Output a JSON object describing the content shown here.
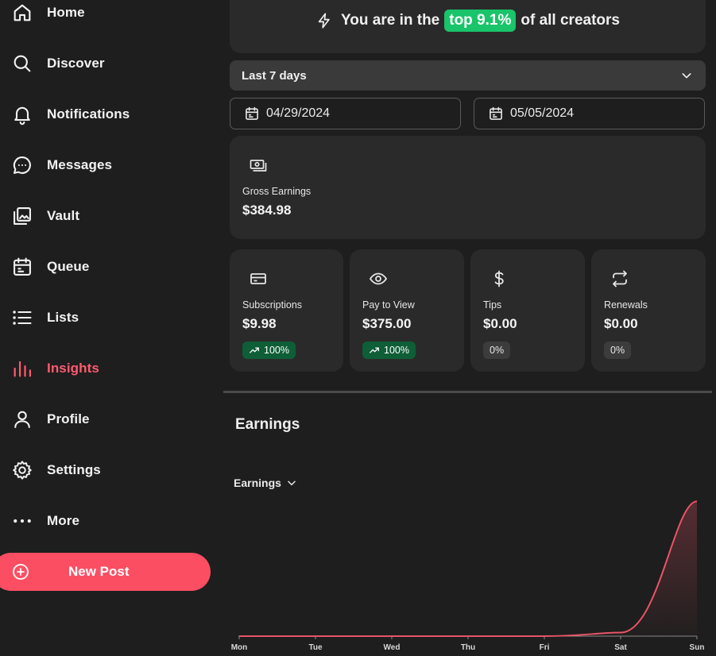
{
  "sidebar": {
    "items": [
      {
        "label": "Home",
        "icon": "home-icon"
      },
      {
        "label": "Discover",
        "icon": "search-icon"
      },
      {
        "label": "Notifications",
        "icon": "bell-icon"
      },
      {
        "label": "Messages",
        "icon": "chat-icon"
      },
      {
        "label": "Vault",
        "icon": "image-gallery-icon"
      },
      {
        "label": "Queue",
        "icon": "calendar-icon"
      },
      {
        "label": "Lists",
        "icon": "list-icon"
      },
      {
        "label": "Insights",
        "icon": "bar-chart-icon",
        "active": true
      },
      {
        "label": "Profile",
        "icon": "user-icon"
      },
      {
        "label": "Settings",
        "icon": "gear-icon"
      },
      {
        "label": "More",
        "icon": "more-dots-icon"
      }
    ],
    "new_post_label": "New Post",
    "active_color": "#ff5b6f",
    "accent_color": "#fb4e63"
  },
  "banner": {
    "prefix": "You are in the",
    "highlight": "top 9.1%",
    "suffix": "of all creators",
    "highlight_color": "#19c46a"
  },
  "filters": {
    "range_label": "Last 7 days",
    "start_date": "04/29/2024",
    "end_date": "05/05/2024"
  },
  "gross": {
    "title": "Gross Earnings",
    "value": "$384.98"
  },
  "stats": [
    {
      "title": "Subscriptions",
      "value": "$9.98",
      "change": "100%",
      "trend": "up",
      "icon": "credit-card-icon"
    },
    {
      "title": "Pay to View",
      "value": "$375.00",
      "change": "100%",
      "trend": "up",
      "icon": "eye-icon"
    },
    {
      "title": "Tips",
      "value": "$0.00",
      "change": "0%",
      "trend": "flat",
      "icon": "dollar-icon"
    },
    {
      "title": "Renewals",
      "value": "$0.00",
      "change": "0%",
      "trend": "flat",
      "icon": "repeat-icon"
    }
  ],
  "earnings": {
    "section_title": "Earnings",
    "dropdown_label": "Earnings"
  },
  "chart_data": {
    "type": "area",
    "categories": [
      "Mon",
      "Tue",
      "Wed",
      "Thu",
      "Fri",
      "Sat",
      "Sun"
    ],
    "series": [
      {
        "values": [
          0,
          0,
          0,
          0,
          0,
          9.98,
          375.0
        ]
      }
    ],
    "ylim": [
      0,
      400
    ],
    "grid": false,
    "line_color": "#e85466"
  }
}
